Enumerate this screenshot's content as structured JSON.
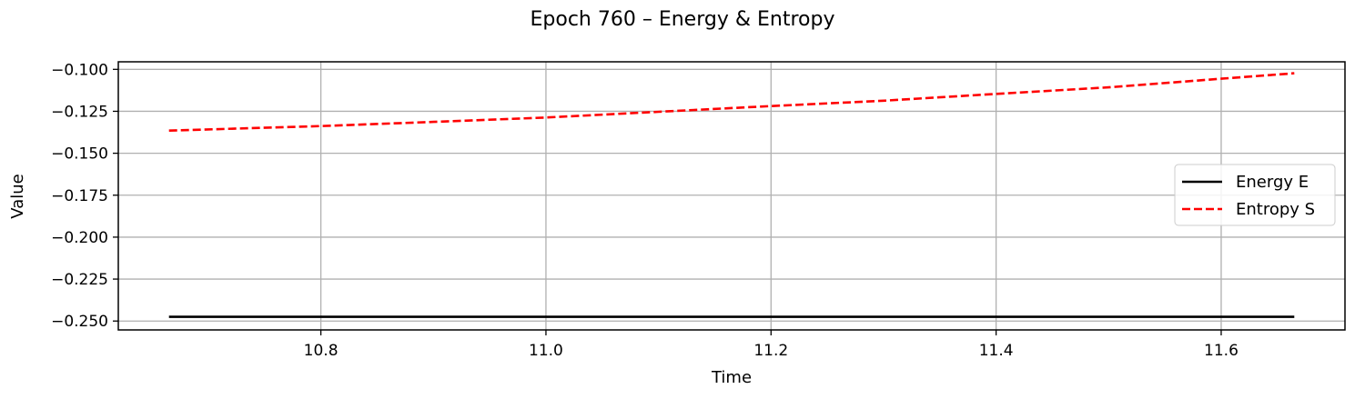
{
  "chart_data": {
    "type": "line",
    "title": "Epoch 760 – Energy & Entropy",
    "xlabel": "Time",
    "ylabel": "Value",
    "xlim": [
      10.62,
      11.71
    ],
    "ylim": [
      -0.2553,
      -0.0955
    ],
    "xticks": [
      10.8,
      11.0,
      11.2,
      11.4,
      11.6
    ],
    "xtick_labels": [
      "10.8",
      "11.0",
      "11.2",
      "11.4",
      "11.6"
    ],
    "yticks": [
      -0.1,
      -0.125,
      -0.15,
      -0.175,
      -0.2,
      -0.225,
      -0.25
    ],
    "ytick_labels": [
      "−0.100",
      "−0.125",
      "−0.150",
      "−0.175",
      "−0.200",
      "−0.225",
      "−0.250"
    ],
    "grid": true,
    "legend_position": "center-right",
    "series": [
      {
        "name": "Energy E",
        "color": "#000000",
        "style": "solid",
        "x": [
          10.665,
          11.665
        ],
        "y": [
          -0.2475,
          -0.2475
        ]
      },
      {
        "name": "Entropy S",
        "color": "#ff0000",
        "style": "dashed",
        "x": [
          10.665,
          10.8,
          10.9,
          11.0,
          11.1,
          11.2,
          11.3,
          11.4,
          11.5,
          11.6,
          11.665
        ],
        "y": [
          -0.1365,
          -0.1338,
          -0.1313,
          -0.1287,
          -0.1253,
          -0.1219,
          -0.1187,
          -0.1146,
          -0.1107,
          -0.1056,
          -0.1023
        ]
      }
    ]
  }
}
